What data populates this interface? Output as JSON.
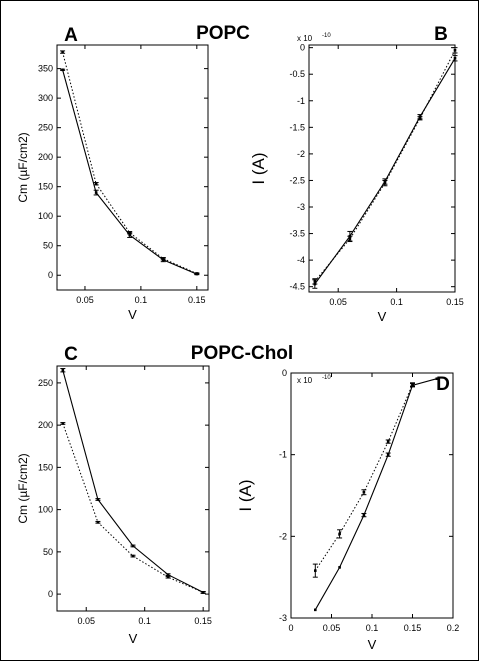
{
  "figure": {
    "headings": {
      "top": "POPC",
      "bottom": "POPC-Chol"
    }
  },
  "chart_data": [
    {
      "panel": "A",
      "type": "line",
      "ylabel": "Cm (µF/cm2)",
      "xlabel": "V",
      "xlim": [
        0.025,
        0.16
      ],
      "ylim": [
        -25,
        390
      ],
      "xticks": [
        "0.05",
        "0.1",
        "0.15"
      ],
      "xtick_values": [
        0.05,
        0.1,
        0.15
      ],
      "yticks": [
        "0",
        "50",
        "100",
        "150",
        "200",
        "250",
        "300",
        "350"
      ],
      "ytick_values": [
        0,
        50,
        100,
        150,
        200,
        250,
        300,
        350
      ],
      "series": [
        {
          "style": "solid",
          "x": [
            0.03,
            0.06,
            0.09,
            0.12,
            0.15
          ],
          "y": [
            348,
            140,
            68,
            26,
            2
          ],
          "err": [
            1,
            4,
            4,
            3,
            1
          ]
        },
        {
          "style": "dotted",
          "x": [
            0.03,
            0.06,
            0.09,
            0.12,
            0.15
          ],
          "y": [
            378,
            155,
            72,
            28,
            3
          ],
          "err": [
            2,
            2,
            2,
            2,
            1
          ]
        }
      ]
    },
    {
      "panel": "B",
      "type": "line",
      "ylabel": "I (A)",
      "xlabel": "V",
      "exponent": "x 10",
      "exponent_power": "-10",
      "xlim": [
        0.025,
        0.15
      ],
      "ylim": [
        -4.6,
        0.05
      ],
      "xticks": [
        "0.05",
        "0.1",
        "0.15"
      ],
      "xtick_values": [
        0.05,
        0.1,
        0.15
      ],
      "yticks": [
        "0",
        "-0.5",
        "-1",
        "-1.5",
        "-2",
        "-2.5",
        "-3",
        "-3.5",
        "-4",
        "-4.5"
      ],
      "ytick_values": [
        0,
        -0.5,
        -1,
        -1.5,
        -2,
        -2.5,
        -3,
        -3.5,
        -4,
        -4.5
      ],
      "series": [
        {
          "style": "solid",
          "x": [
            0.03,
            0.06,
            0.09,
            0.12,
            0.15
          ],
          "y": [
            -4.45,
            -3.55,
            -2.52,
            -1.3,
            -0.2
          ],
          "err": [
            0.08,
            0.09,
            0.05,
            0.04,
            0.05
          ]
        },
        {
          "style": "dotted",
          "x": [
            0.03,
            0.06,
            0.09,
            0.12,
            0.15
          ],
          "y": [
            -4.4,
            -3.6,
            -2.55,
            -1.33,
            -0.05
          ],
          "err": [
            0.05,
            0.05,
            0.05,
            0.03,
            0.05
          ]
        }
      ]
    },
    {
      "panel": "C",
      "type": "line",
      "ylabel": "Cm (µF/cm2)",
      "xlabel": "V",
      "xlim": [
        0.025,
        0.155
      ],
      "ylim": [
        -20,
        270
      ],
      "xticks": [
        "0.05",
        "0.1",
        "0.15"
      ],
      "xtick_values": [
        0.05,
        0.1,
        0.15
      ],
      "yticks": [
        "0",
        "50",
        "100",
        "150",
        "200",
        "250"
      ],
      "ytick_values": [
        0,
        50,
        100,
        150,
        200,
        250
      ],
      "series": [
        {
          "style": "solid",
          "x": [
            0.03,
            0.06,
            0.09,
            0.12,
            0.15
          ],
          "y": [
            265,
            112,
            57,
            23,
            2
          ],
          "err": [
            2,
            1,
            1,
            1,
            1
          ]
        },
        {
          "style": "dotted",
          "x": [
            0.03,
            0.06,
            0.09,
            0.12,
            0.15
          ],
          "y": [
            202,
            85,
            45,
            20,
            2
          ],
          "err": [
            1,
            1,
            1,
            1,
            1
          ]
        }
      ]
    },
    {
      "panel": "D",
      "type": "line",
      "ylabel": "I (A)",
      "xlabel": "V",
      "exponent": "x 10",
      "exponent_power": "-10",
      "xlim": [
        0,
        0.2
      ],
      "ylim": [
        -3,
        0
      ],
      "xticks": [
        "0",
        "0.05",
        "0.1",
        "0.15",
        "0.2"
      ],
      "xtick_values": [
        0,
        0.05,
        0.1,
        0.15,
        0.2
      ],
      "yticks": [
        "0",
        "-1",
        "-2",
        "-3"
      ],
      "ytick_values": [
        0,
        -1,
        -2,
        -3
      ],
      "series": [
        {
          "style": "solid",
          "x": [
            0.03,
            0.06,
            0.09,
            0.12,
            0.15,
            0.18
          ],
          "y": [
            -2.9,
            -2.38,
            -1.74,
            -1.0,
            -0.15,
            -0.07
          ],
          "err": [
            0,
            0,
            0.02,
            0.02,
            0.02,
            0
          ]
        },
        {
          "style": "dotted",
          "x": [
            0.03,
            0.06,
            0.09,
            0.12,
            0.15
          ],
          "y": [
            -2.42,
            -1.97,
            -1.46,
            -0.84,
            -0.14
          ],
          "err": [
            0.08,
            0.05,
            0.03,
            0.02,
            0.02
          ]
        }
      ]
    }
  ]
}
